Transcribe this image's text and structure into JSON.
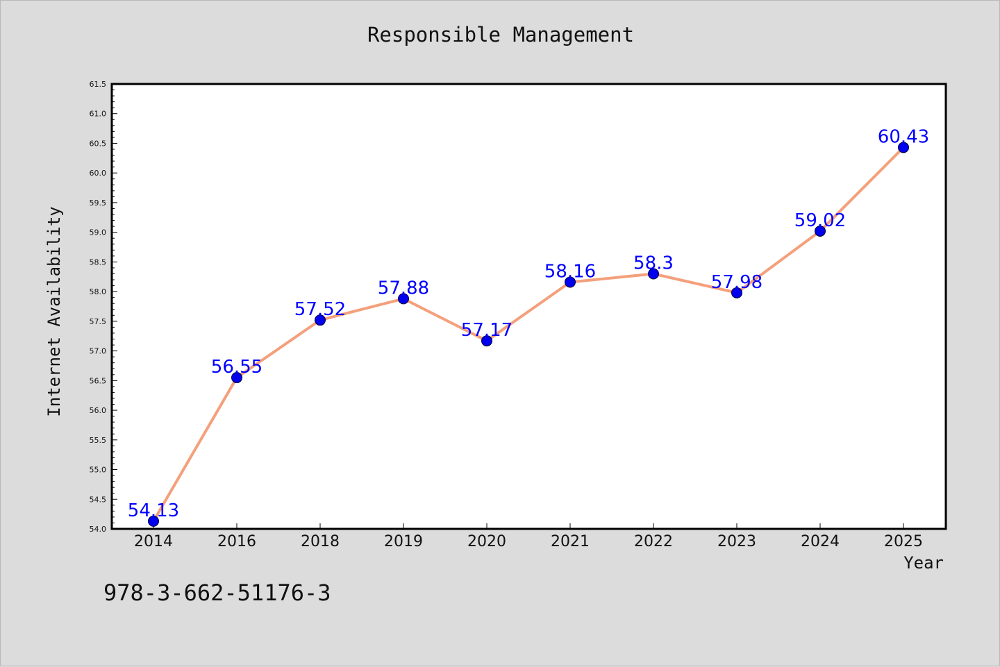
{
  "chart_data": {
    "type": "line",
    "title": "Responsible Management",
    "xlabel": "Year",
    "ylabel": "Internet Availability",
    "categories": [
      "2014",
      "2016",
      "2018",
      "2019",
      "2020",
      "2021",
      "2022",
      "2023",
      "2024",
      "2025"
    ],
    "series": [
      {
        "values": [
          54.13,
          56.55,
          57.52,
          57.88,
          57.17,
          58.16,
          58.3,
          57.98,
          59.02,
          60.43
        ],
        "labels": [
          "54.13",
          "56.55",
          "57.52",
          "57.88",
          "57.17",
          "58.16",
          "58.3",
          "57.98",
          "59.02",
          "60.43"
        ]
      }
    ],
    "ylim": [
      54.0,
      61.5
    ],
    "yticks": [
      "54.0",
      "54.5",
      "55.0",
      "55.5",
      "56.0",
      "56.5",
      "57.0",
      "57.5",
      "58.0",
      "58.5",
      "59.0",
      "59.5",
      "60.0",
      "60.5",
      "61.0",
      "61.5"
    ],
    "grid": false,
    "colors": {
      "line": "#f4a07c",
      "marker": "#0000ee",
      "data_label": "#0000ff",
      "plot_background": "#ffffff",
      "figure_background": "#dcdcdc"
    }
  },
  "footer": {
    "isbn": "978-3-662-51176-3"
  }
}
